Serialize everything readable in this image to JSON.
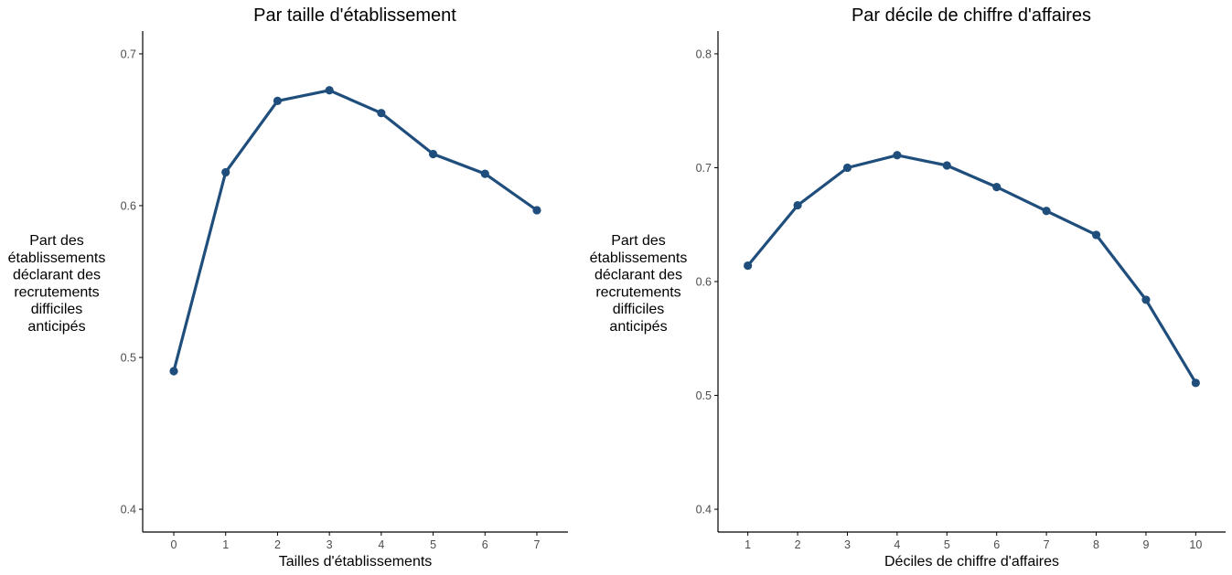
{
  "colors": {
    "series": "#1f4e7d",
    "axis": "#000000",
    "tick_text": "#4d4d4d"
  },
  "chart_data": [
    {
      "type": "line",
      "title": "Par taille d'établissement",
      "xlabel": "Tailles d'établissements",
      "ylabel_lines": [
        "Part des",
        "établissements",
        "déclarant des",
        "recrutements",
        "difficiles",
        "anticipés"
      ],
      "x": [
        0,
        1,
        2,
        3,
        4,
        5,
        6,
        7
      ],
      "x_tick_labels": [
        "0",
        "1",
        "2",
        "3",
        "4",
        "5",
        "6",
        "7"
      ],
      "y": [
        0.491,
        0.622,
        0.669,
        0.676,
        0.661,
        0.634,
        0.621,
        0.597
      ],
      "y_ticks": [
        0.4,
        0.5,
        0.6,
        0.7
      ],
      "y_tick_labels": [
        "0.4",
        "0.5",
        "0.6",
        "0.7"
      ],
      "xlim": [
        -0.6,
        7.6
      ],
      "ylim": [
        0.385,
        0.715
      ],
      "grid": false
    },
    {
      "type": "line",
      "title": "Par décile de chiffre d'affaires",
      "xlabel": "Déciles de chiffre d'affaires",
      "ylabel_lines": [
        "Part des",
        "établissements",
        "déclarant des",
        "recrutements",
        "difficiles",
        "anticipés"
      ],
      "x": [
        1,
        2,
        3,
        4,
        5,
        6,
        7,
        8,
        9,
        10
      ],
      "x_tick_labels": [
        "1",
        "2",
        "3",
        "4",
        "5",
        "6",
        "7",
        "8",
        "9",
        "10"
      ],
      "y": [
        0.614,
        0.667,
        0.7,
        0.711,
        0.702,
        0.683,
        0.662,
        0.641,
        0.584,
        0.511
      ],
      "y_ticks": [
        0.4,
        0.5,
        0.6,
        0.7,
        0.8
      ],
      "y_tick_labels": [
        "0.4",
        "0.5",
        "0.6",
        "0.7",
        "0.8"
      ],
      "xlim": [
        0.4,
        10.6
      ],
      "ylim": [
        0.38,
        0.82
      ],
      "grid": false
    }
  ]
}
